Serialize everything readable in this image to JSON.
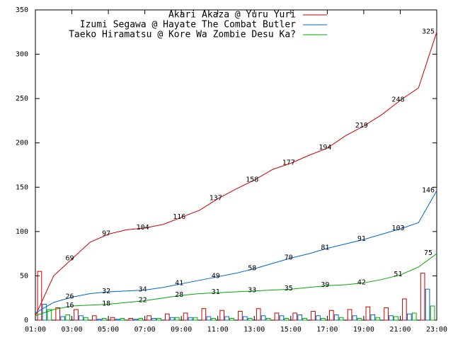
{
  "chart_data": {
    "type": "line",
    "x": [
      1,
      2,
      3,
      4,
      5,
      6,
      7,
      8,
      9,
      10,
      11,
      12,
      13,
      14,
      15,
      16,
      17,
      18,
      19,
      20,
      21,
      22,
      23
    ],
    "series": [
      {
        "name": "Akari Akaza @ Yuru Yuri",
        "color": "#cc0000",
        "values": [
          5,
          50,
          69,
          88,
          97,
          102,
          104,
          108,
          116,
          124,
          137,
          148,
          158,
          170,
          177,
          186,
          194,
          208,
          219,
          232,
          248,
          262,
          325
        ],
        "hourly": [
          55,
          14,
          12,
          5,
          3,
          2,
          5,
          7,
          8,
          13,
          11,
          10,
          13,
          8,
          8,
          10,
          11,
          12,
          15,
          14,
          24,
          53
        ]
      },
      {
        "name": "Izumi Segawa @ Hayate The Combat Butler",
        "color": "#0066cc",
        "values": [
          8,
          20,
          26,
          30,
          32,
          33,
          34,
          37,
          41,
          45,
          49,
          53,
          58,
          64,
          70,
          75,
          81,
          86,
          91,
          97,
          103,
          110,
          146
        ],
        "hourly": [
          18,
          4,
          5,
          1,
          1,
          1,
          2,
          3,
          3,
          4,
          4,
          4,
          5,
          5,
          6,
          5,
          6,
          5,
          6,
          5,
          7,
          35
        ]
      },
      {
        "name": "Taeko Hiramatsu @ Kore Wa Zombie Desu Ka?",
        "color": "#00aa00",
        "values": [
          5,
          12,
          16,
          17,
          18,
          20,
          22,
          25,
          28,
          30,
          31,
          32,
          33,
          34,
          35,
          37,
          39,
          40,
          42,
          46,
          51,
          60,
          75
        ],
        "hourly": [
          12,
          6,
          3,
          2,
          2,
          2,
          2,
          3,
          3,
          2,
          2,
          2,
          2,
          2,
          2,
          2,
          3,
          2,
          3,
          4,
          8,
          16
        ]
      }
    ],
    "xlim": [
      1,
      23
    ],
    "xticks": [
      {
        "value": 1,
        "label": "01:00"
      },
      {
        "value": 3,
        "label": "03:00"
      },
      {
        "value": 5,
        "label": "05:00"
      },
      {
        "value": 7,
        "label": "07:00"
      },
      {
        "value": 9,
        "label": "09:00"
      },
      {
        "value": 11,
        "label": "11:00"
      },
      {
        "value": 13,
        "label": "13:00"
      },
      {
        "value": 15,
        "label": "15:00"
      },
      {
        "value": 17,
        "label": "17:00"
      },
      {
        "value": 19,
        "label": "19:00"
      },
      {
        "value": 21,
        "label": "21:00"
      },
      {
        "value": 23,
        "label": "23:00"
      }
    ],
    "ylim": [
      0,
      350
    ],
    "yticks": [
      0,
      50,
      100,
      150,
      200,
      250,
      300,
      350
    ],
    "legend": "top-right"
  }
}
